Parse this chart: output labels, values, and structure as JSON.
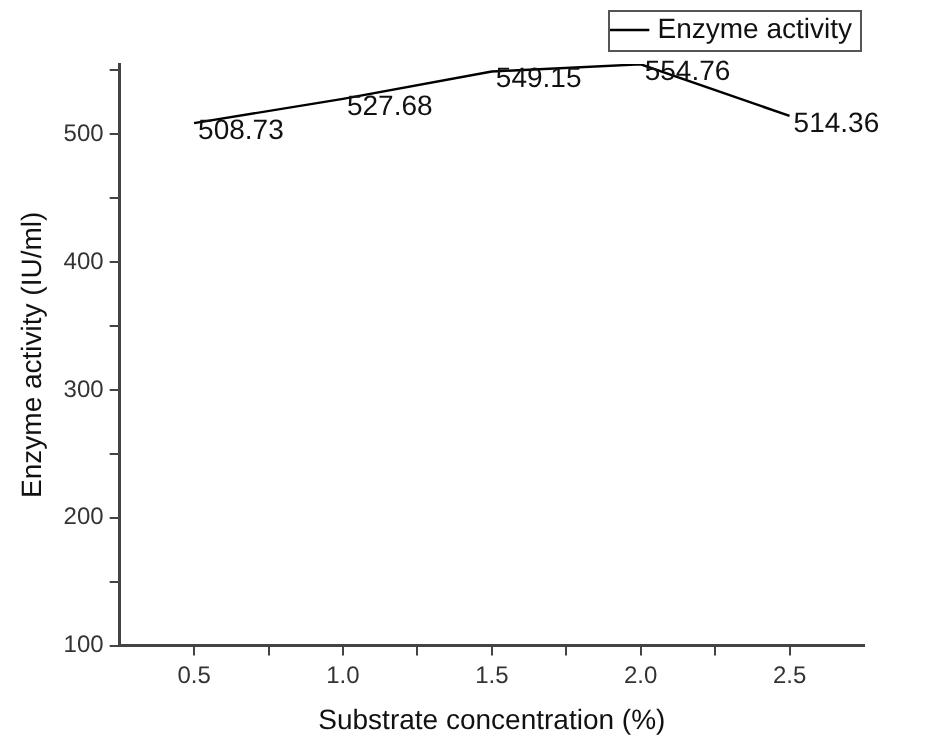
{
  "chart_data": {
    "type": "line",
    "xlabel": "Substrate concentration (%)",
    "ylabel": "Enzyme activity (IU/ml)",
    "x": [
      0.5,
      1.0,
      1.5,
      2.0,
      2.5
    ],
    "series": [
      {
        "name": "Enzyme activity",
        "color": "#000000",
        "values": [
          508.73,
          527.68,
          549.15,
          554.76,
          514.36
        ]
      }
    ],
    "xlim": [
      0.25,
      2.75
    ],
    "xticks": [
      {
        "value": 0.5,
        "label": "0.5"
      },
      {
        "value": 0.75,
        "label": null
      },
      {
        "value": 1.0,
        "label": "1.0"
      },
      {
        "value": 1.25,
        "label": null
      },
      {
        "value": 1.5,
        "label": "1.5"
      },
      {
        "value": 1.75,
        "label": null
      },
      {
        "value": 2.0,
        "label": "2.0"
      },
      {
        "value": 2.25,
        "label": null
      },
      {
        "value": 2.5,
        "label": "2.5"
      }
    ],
    "ylim": [
      100,
      555
    ],
    "yticks": [
      100,
      {
        "value": 150,
        "label": null
      },
      200,
      {
        "value": 250,
        "label": null
      },
      300,
      {
        "value": 350,
        "label": null
      },
      400,
      {
        "value": 450,
        "label": null
      },
      500,
      {
        "value": 550,
        "label": null
      }
    ],
    "data_labels": true,
    "legend": "top right",
    "grid": false,
    "marker": "none",
    "line_style": "solid"
  }
}
